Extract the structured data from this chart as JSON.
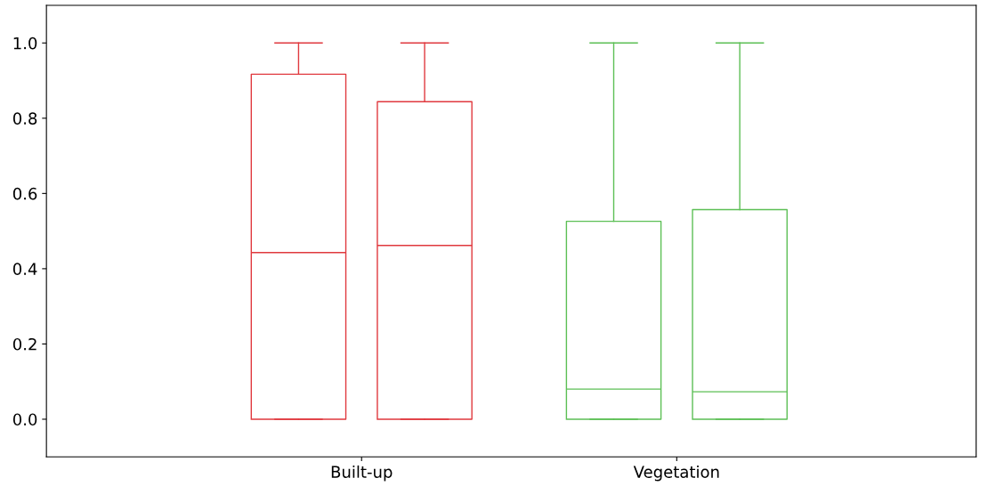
{
  "chart_data": {
    "type": "box",
    "categories": [
      "Built-up",
      "Vegetation"
    ],
    "series": [
      {
        "colors": [
          "#e0393e",
          "#5cbf55"
        ],
        "boxes": [
          {
            "low": 0,
            "q1": 0,
            "median": 0.443,
            "q3": 0.917,
            "high": 1
          },
          {
            "low": 0,
            "q1": 0,
            "median": 0.08,
            "q3": 0.526,
            "high": 1
          }
        ]
      },
      {
        "colors": [
          "#e0393e",
          "#5cbf55"
        ],
        "boxes": [
          {
            "low": 0,
            "q1": 0,
            "median": 0.462,
            "q3": 0.844,
            "high": 1
          },
          {
            "low": 0,
            "q1": 0,
            "median": 0.073,
            "q3": 0.557,
            "high": 1
          }
        ]
      }
    ],
    "ylim": [
      -0.1,
      1.1
    ],
    "yticks": [
      {
        "value": 0,
        "label": "0.0"
      },
      {
        "value": 0.2,
        "label": "0.2"
      },
      {
        "value": 0.4,
        "label": "0.4"
      },
      {
        "value": 0.6,
        "label": "0.6"
      },
      {
        "value": 0.8,
        "label": "0.8"
      },
      {
        "value": 1,
        "label": "1.0"
      }
    ],
    "grid": false
  }
}
